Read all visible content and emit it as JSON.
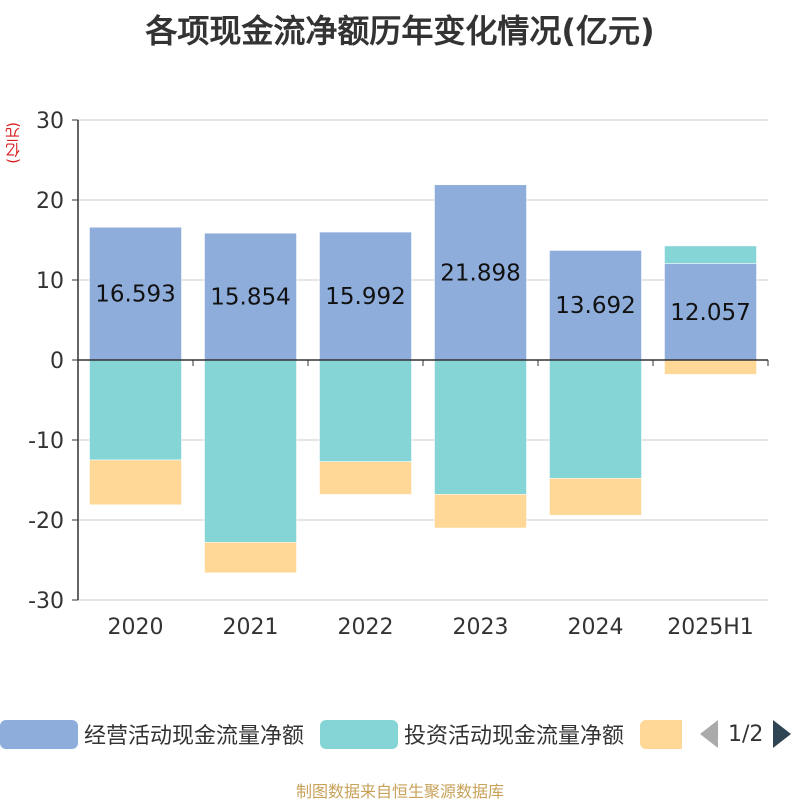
{
  "title": "各项现金流净额历年变化情况(亿元)",
  "unit_label": "(亿元)",
  "footer": "制图数据来自恒生聚源数据库",
  "legend": {
    "items": [
      {
        "label": "经营活动现金流量净额",
        "color": "#8eaddb"
      },
      {
        "label": "投资活动现金流量净额",
        "color": "#86d5d6"
      },
      {
        "label": "",
        "color": "#ffd897"
      }
    ],
    "page": "1/2"
  },
  "chart_data": {
    "type": "bar",
    "stacked": true,
    "categories": [
      "2020",
      "2021",
      "2022",
      "2023",
      "2024",
      "2025H1"
    ],
    "ylim": [
      -30,
      30
    ],
    "yticks": [
      30,
      20,
      10,
      0,
      -10,
      -20,
      -30
    ],
    "grid": true,
    "legend_position": "bottom",
    "series": [
      {
        "name": "经营活动现金流量净额",
        "color": "#8eaddb",
        "values": [
          16.593,
          15.854,
          15.992,
          21.898,
          13.692,
          12.057
        ]
      },
      {
        "name": "投资活动现金流量净额",
        "color": "#86d5d6",
        "values": [
          -12.5,
          -22.8,
          -12.7,
          -16.8,
          -14.8,
          2.2
        ]
      },
      {
        "color": "#ffd897",
        "values": [
          -5.6,
          -3.8,
          -4.1,
          -4.2,
          -4.6,
          -1.8
        ]
      }
    ],
    "data_labels": [
      "16.593",
      "15.854",
      "15.992",
      "21.898",
      "13.692",
      "12.057"
    ]
  }
}
